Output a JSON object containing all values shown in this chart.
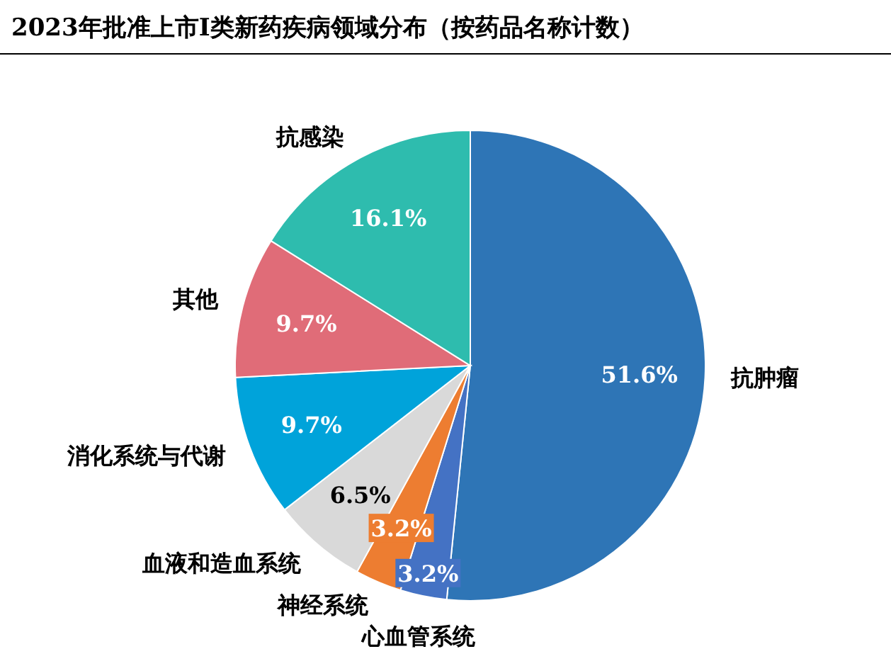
{
  "chart_data": {
    "type": "pie",
    "title": "2023年批准上市I类新药疾病领域分布（按药品名称计数）",
    "categories": [
      "抗肿瘤",
      "心血管系统",
      "神经系统",
      "血液和造血系统",
      "消化系统与代谢",
      "其他",
      "抗感染"
    ],
    "values": [
      51.6,
      3.2,
      3.2,
      6.5,
      9.7,
      9.7,
      16.1
    ],
    "colors": [
      "#2e75b6",
      "#4472c4",
      "#ed7d31",
      "#d9d9d9",
      "#00a3da",
      "#e06c78",
      "#2ebcae"
    ],
    "value_labels": [
      "51.6%",
      "3.2%",
      "3.2%",
      "6.5%",
      "9.7%",
      "9.7%",
      "16.1%"
    ]
  }
}
